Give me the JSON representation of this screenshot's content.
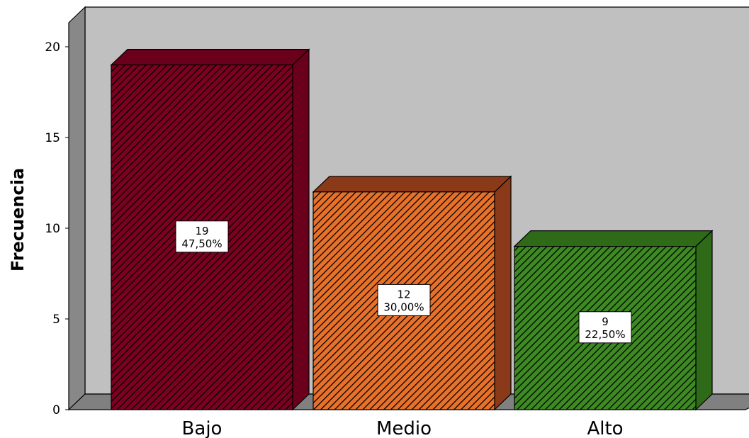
{
  "chart_data": {
    "type": "bar",
    "style": "3d-hatched",
    "categories": [
      "Bajo",
      "Medio",
      "Alto"
    ],
    "values": [
      19,
      12,
      9
    ],
    "percent_labels": [
      "47,50%",
      "30,00%",
      "22,50%"
    ],
    "ylabel": "Frecuencia",
    "xlabel": "",
    "ylim": [
      0,
      20
    ],
    "yticks": [
      0,
      5,
      10,
      15,
      20
    ],
    "grid": false,
    "legend": "none",
    "colors": [
      "#7d0021",
      "#e8712a",
      "#3e8a22"
    ],
    "side_colors": [
      "#6a001c",
      "#8a3a18",
      "#2e6a18"
    ],
    "wall_color": "#c0c0c0",
    "floor_color": "#808080"
  }
}
